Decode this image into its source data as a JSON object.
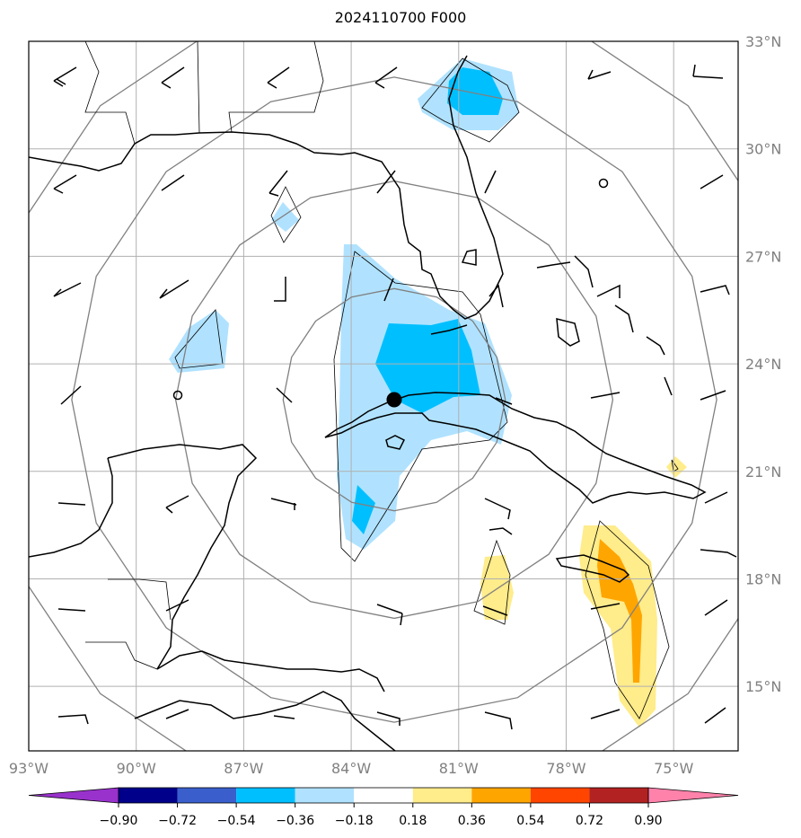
{
  "title": "2024110700 F000",
  "map": {
    "lon_range": [
      -93,
      -73.2
    ],
    "lat_range": [
      13.2,
      33
    ],
    "lat_ticks": [
      {
        "value": 33,
        "label": "33°N"
      },
      {
        "value": 30,
        "label": "30°N"
      },
      {
        "value": 27,
        "label": "27°N"
      },
      {
        "value": 24,
        "label": "24°N"
      },
      {
        "value": 21,
        "label": "21°N"
      },
      {
        "value": 18,
        "label": "18°N"
      },
      {
        "value": 15,
        "label": "15°N"
      }
    ],
    "lon_ticks": [
      {
        "value": -93,
        "label": "93°W"
      },
      {
        "value": -90,
        "label": "90°W"
      },
      {
        "value": -87,
        "label": "87°W"
      },
      {
        "value": -84,
        "label": "84°W"
      },
      {
        "value": -81,
        "label": "81°W"
      },
      {
        "value": -78,
        "label": "78°W"
      },
      {
        "value": -75,
        "label": "75°W"
      }
    ],
    "storm_center": {
      "lon": -82.8,
      "lat": 23.0
    },
    "range_ring_radii_deg": [
      3.1,
      6.1,
      9.0,
      11.6
    ],
    "colors": {
      "grid": "#b0b0b0",
      "rings": "#808080",
      "coast": "#000000",
      "storm_marker": "#000000"
    }
  },
  "colorbar": {
    "levels": [
      "−0.90",
      "−0.72",
      "−0.54",
      "−0.36",
      "−0.18",
      "0.18",
      "0.36",
      "0.54",
      "0.72",
      "0.90"
    ],
    "colors": [
      "#9932cc",
      "#00008b",
      "#3a5fcd",
      "#00bfff",
      "#b0e2ff",
      "#ffffff",
      "#ffec8b",
      "#ffa500",
      "#ff4500",
      "#b22222",
      "#ff82ab"
    ]
  }
}
